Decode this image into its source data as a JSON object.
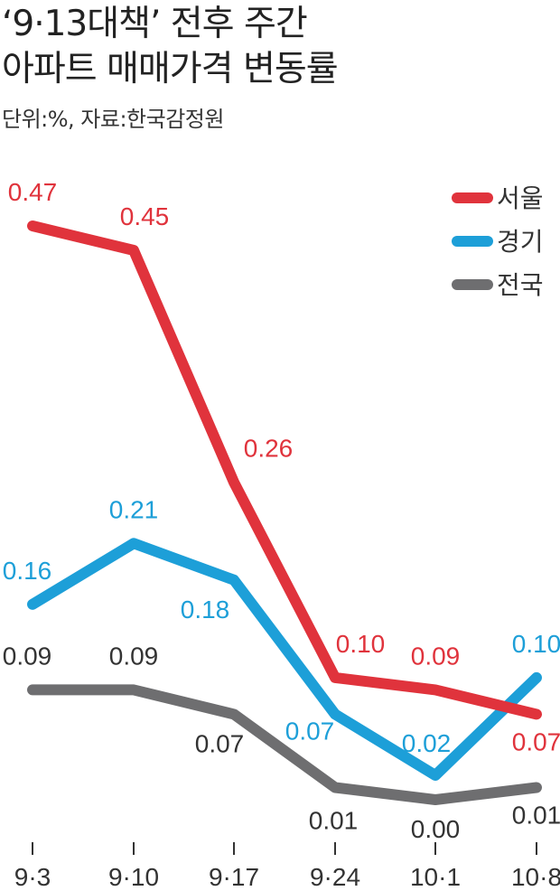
{
  "title": {
    "line1": "‘9·13대책’ 전후 주간",
    "line2": "아파트 매매가격 변동률"
  },
  "subtitle": "단위:%, 자료:한국감정원",
  "colors": {
    "seoul": "#e0333c",
    "gyeonggi": "#1d9fd8",
    "national": "#6e6e70",
    "axis": "#333333"
  },
  "chart_data": {
    "type": "line",
    "title": "‘9·13대책’ 전후 주간 아파트 매매가격 변동률",
    "categories": [
      "9·3",
      "9·10",
      "9·17",
      "9·24",
      "10·1",
      "10·8"
    ],
    "ylim": [
      0.0,
      0.47
    ],
    "legend_position": "top-right",
    "grid": false,
    "series": [
      {
        "name": "서울",
        "values": [
          0.47,
          0.45,
          0.26,
          0.1,
          0.09,
          0.07
        ],
        "labels": [
          "0.47",
          "0.45",
          "0.26",
          "0.10",
          "0.09",
          "0.07"
        ]
      },
      {
        "name": "경기",
        "values": [
          0.16,
          0.21,
          0.18,
          0.07,
          0.02,
          0.1
        ],
        "labels": [
          "0.16",
          "0.21",
          "0.18",
          "0.07",
          "0.02",
          "0.10"
        ]
      },
      {
        "name": "전국",
        "values": [
          0.09,
          0.09,
          0.07,
          0.01,
          0.0,
          0.01
        ],
        "labels": [
          "0.09",
          "0.09",
          "0.07",
          "0.01",
          "0.00",
          "0.01"
        ]
      }
    ]
  }
}
